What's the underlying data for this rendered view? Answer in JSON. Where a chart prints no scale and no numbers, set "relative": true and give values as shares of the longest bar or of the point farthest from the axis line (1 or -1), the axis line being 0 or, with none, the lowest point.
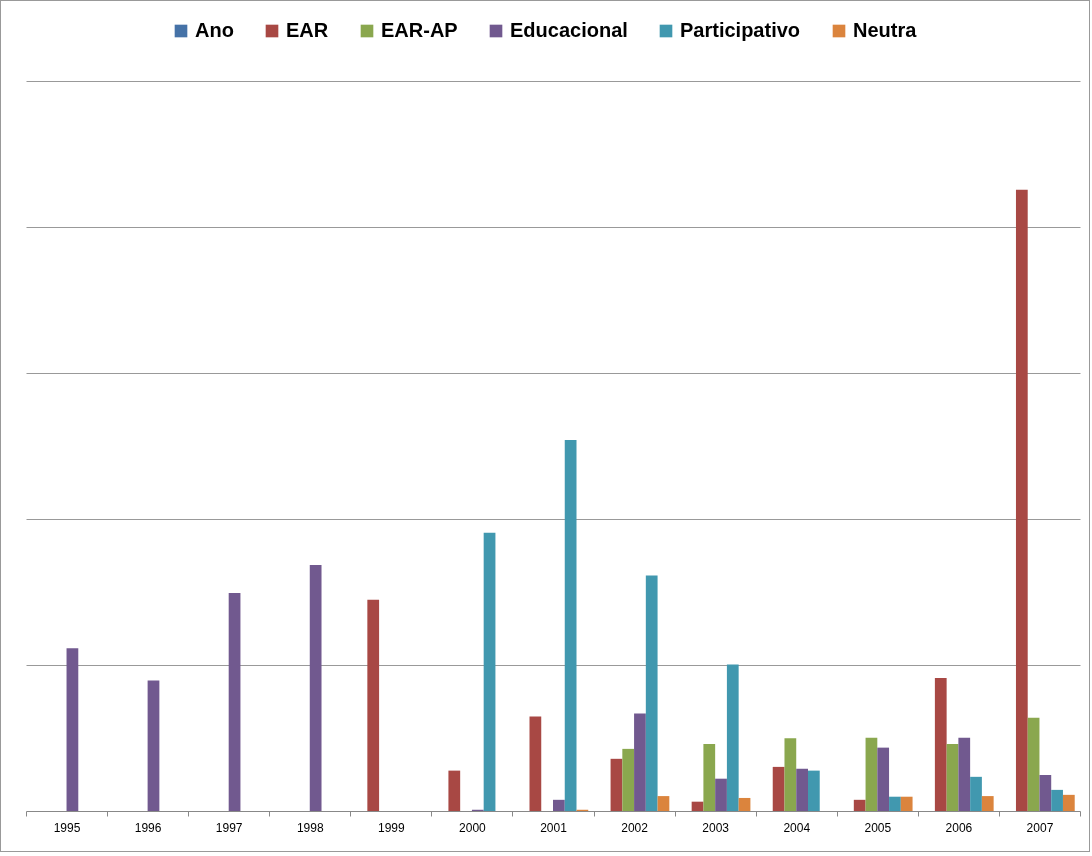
{
  "chart_data": {
    "type": "bar",
    "relative": true,
    "grid": "y",
    "legend": "top",
    "categories": [
      "1995",
      "1996",
      "1997",
      "1998",
      "1999",
      "2000",
      "2001",
      "2002",
      "2003",
      "2004",
      "2005",
      "2006",
      "2007"
    ],
    "series": [
      {
        "name": "Ano",
        "color": "#4572a7",
        "values": [
          null,
          null,
          null,
          null,
          null,
          null,
          null,
          null,
          null,
          null,
          null,
          null,
          null
        ]
      },
      {
        "name": "EAR",
        "color": "#a84844",
        "values": [
          null,
          null,
          null,
          null,
          0.34,
          0.065,
          0.152,
          0.084,
          0.015,
          0.071,
          0.018,
          0.214,
          1
        ]
      },
      {
        "name": "EAR-AP",
        "color": "#8aa74e",
        "values": [
          null,
          null,
          null,
          null,
          null,
          null,
          null,
          0.1,
          0.108,
          0.117,
          0.118,
          0.108,
          0.15
        ]
      },
      {
        "name": "Educacional",
        "color": "#71598f",
        "values": [
          0.262,
          0.21,
          0.351,
          0.396,
          null,
          0.002,
          0.018,
          0.157,
          0.052,
          0.068,
          0.102,
          0.118,
          0.058
        ]
      },
      {
        "name": "Participativo",
        "color": "#4198af",
        "values": [
          null,
          null,
          null,
          null,
          null,
          0.448,
          0.597,
          0.379,
          0.236,
          0.065,
          0.023,
          0.055,
          0.034
        ]
      },
      {
        "name": "Neutra",
        "color": "#db843d",
        "values": [
          null,
          null,
          null,
          null,
          null,
          null,
          0.002,
          0.024,
          0.021,
          null,
          0.023,
          0.024,
          0.026
        ]
      }
    ]
  }
}
